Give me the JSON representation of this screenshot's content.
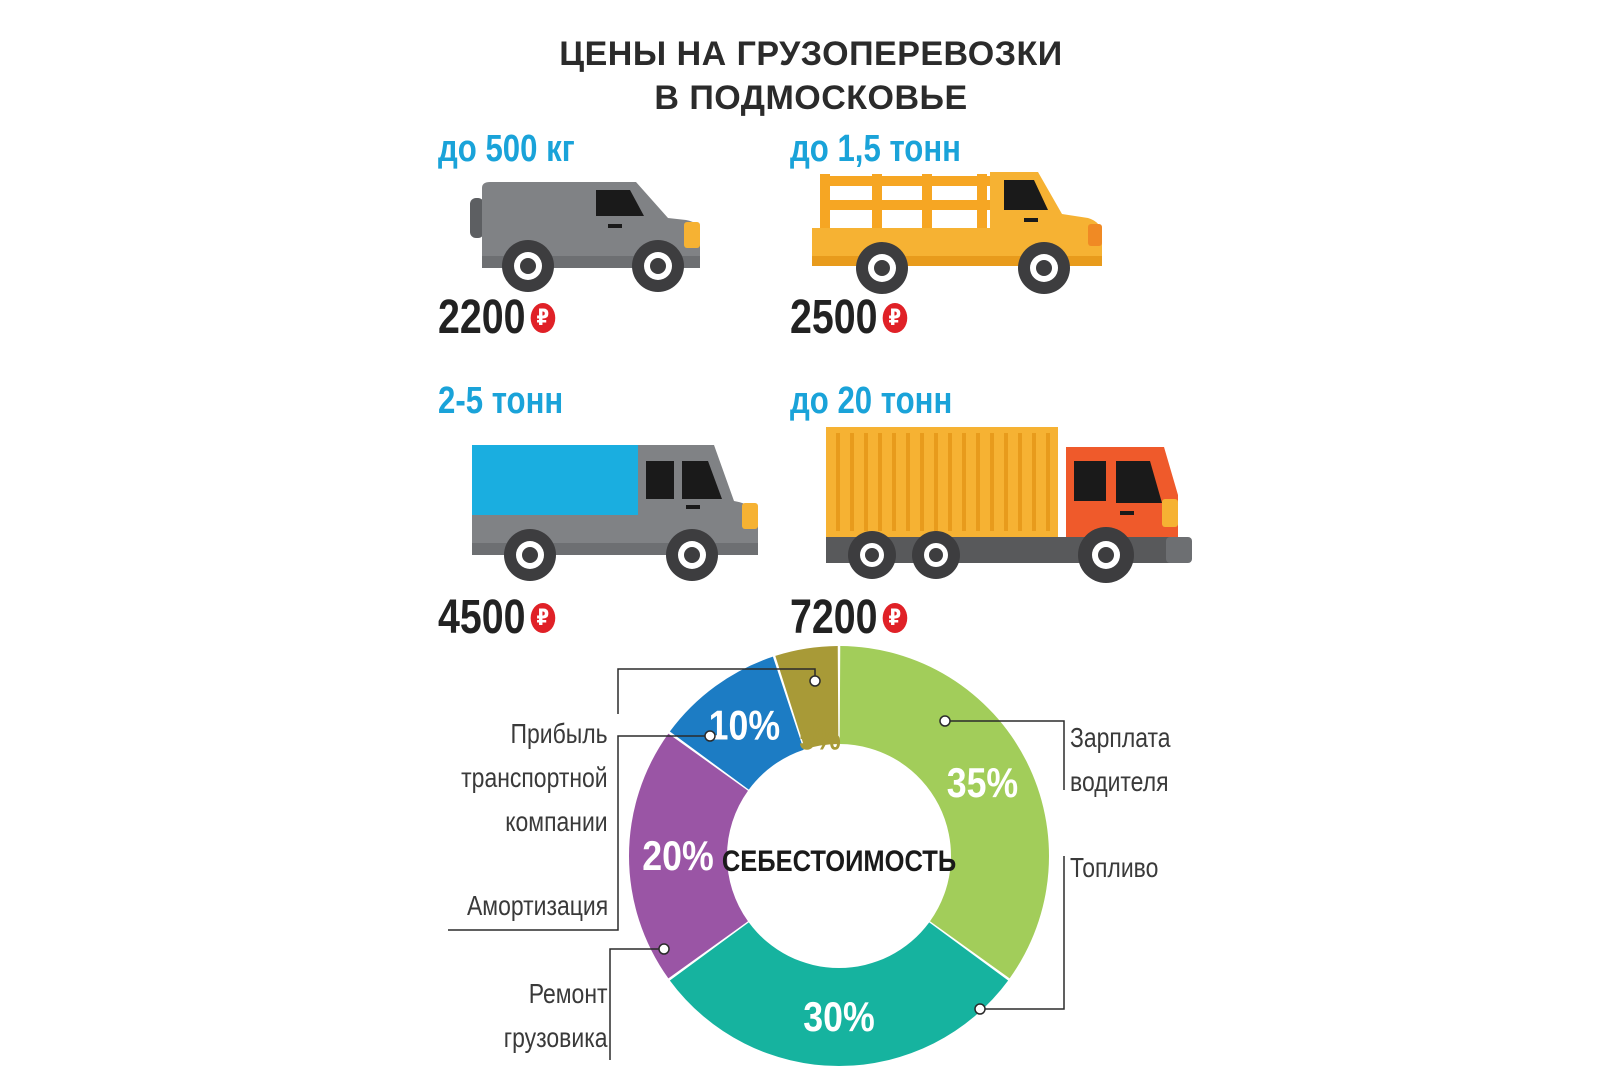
{
  "title": {
    "line1": "ЦЕНЫ НА ГРУЗОПЕРЕВОЗКИ",
    "line2": "В ПОДМОСКОВЬЕ"
  },
  "currency_symbol": "₽",
  "vehicles": [
    {
      "weight": "до 500 кг",
      "price": "2200",
      "icon": "van-icon",
      "color": "#808285"
    },
    {
      "weight": "до 1,5 тонн",
      "price": "2500",
      "icon": "pickup-truck-icon",
      "color": "#f6b233"
    },
    {
      "weight": "2-5 тонн",
      "price": "4500",
      "icon": "box-truck-icon",
      "color": "#1aa3d9"
    },
    {
      "weight": "до 20 тонн",
      "price": "7200",
      "icon": "container-truck-icon",
      "color": "#ef5a2b"
    }
  ],
  "chart_data": {
    "type": "pie",
    "center_label": "СЕБЕСТОИМОСТЬ",
    "slices": [
      {
        "label": "Зарплата водителя",
        "value": 35,
        "display": "35%",
        "color": "#a2cd5a"
      },
      {
        "label": "Топливо",
        "value": 30,
        "display": "30%",
        "color": "#16b39f"
      },
      {
        "label": "Ремонт грузовика",
        "value": 20,
        "display": "20%",
        "color": "#9a55a5"
      },
      {
        "label": "Амортизация",
        "value": 10,
        "display": "10%",
        "color": "#1c7cc4"
      },
      {
        "label": "Прибыль транспортной компании",
        "value": 5,
        "display": "5%",
        "color": "#a89a37"
      }
    ],
    "label_lines": {
      "zarplata": [
        "Зарплата",
        "водителя"
      ],
      "toplivo": [
        "Топливо"
      ],
      "pribyl": [
        "Прибыль",
        "транспортной",
        "компании"
      ],
      "amort": [
        "Амортизация"
      ],
      "remont": [
        "Ремонт",
        "грузовика"
      ]
    }
  }
}
